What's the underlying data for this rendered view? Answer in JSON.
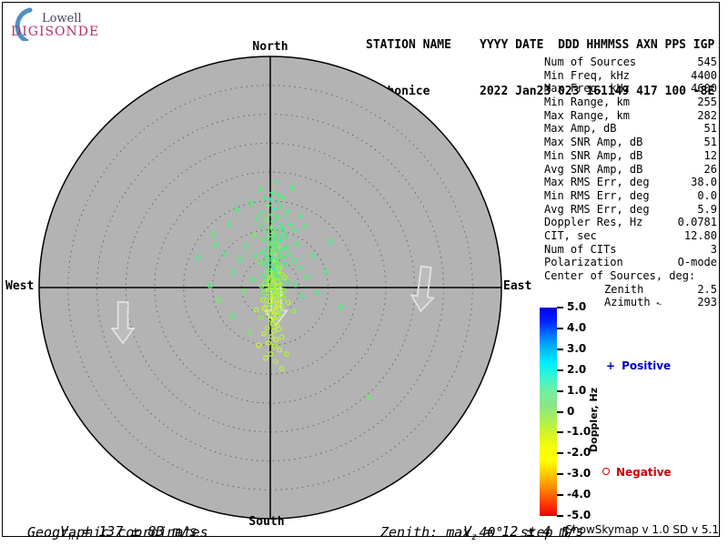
{
  "logo": {
    "line1": "Lowell",
    "line2": "DIGISONDE",
    "arc_color": "#4e8fc6"
  },
  "header": {
    "left_title": "STATION NAME",
    "left_value": "Pruhonice",
    "right_title": "YYYY DATE  DDD HHMMSS AXN PPS IGP",
    "right_value": "2022 Jan23 023 161149 417 100 -8E"
  },
  "stats": {
    "rows": [
      {
        "label": "Num of Sources",
        "value": "545"
      },
      {
        "label": "Min Freq, kHz",
        "value": "4400"
      },
      {
        "label": "Max Freq, kHz",
        "value": "4600"
      },
      {
        "label": "Min Range, km",
        "value": "255"
      },
      {
        "label": "Max Range, km",
        "value": "282"
      },
      {
        "label": "Max Amp, dB",
        "value": "51"
      },
      {
        "label": "Max SNR Amp, dB",
        "value": "51"
      },
      {
        "label": "Min SNR Amp, dB",
        "value": "12"
      },
      {
        "label": "Avg SNR Amp, dB",
        "value": "26"
      },
      {
        "label": "Max RMS Err, deg",
        "value": "38.0"
      },
      {
        "label": "Min RMS Err, deg",
        "value": "0.0"
      },
      {
        "label": "Avg RMS Err, deg",
        "value": "5.9"
      },
      {
        "label": "Doppler Res, Hz",
        "value": "0.0781"
      },
      {
        "label": "CIT, sec",
        "value": "12.80"
      },
      {
        "label": "Num of CITs",
        "value": "3"
      },
      {
        "label": "Polarization",
        "value": "O-mode"
      },
      {
        "label": "Center of Sources, deg:",
        "value": ""
      },
      {
        "label": "Zenith",
        "value": "2.5",
        "indent": true
      },
      {
        "label": "Azimuth",
        "value": "293",
        "indent": true,
        "arrow": true
      }
    ]
  },
  "footer": {
    "vh_sym": "V",
    "vh_sub": "h",
    "vh_rest": "= 137 ± 83 m/s",
    "coords": "Geographic coordinates",
    "vz_sym": "V",
    "vz_sub": "z",
    "vz_rest": "= 12 ± 4 m/s",
    "zenith_note": "Zenith: max 40°  step 5°",
    "version": "ShowSkymap v 1.0   SD v 5.1"
  },
  "chart_data": {
    "type": "scatter",
    "projection": "polar skymap (zenith angle from center, azimuth from North)",
    "station": "Pruhonice",
    "datetime": "2022 Jan23 023 161149",
    "directions": {
      "north": "North",
      "south": "South",
      "east": "East",
      "west": "West"
    },
    "zenith_max_deg": 40,
    "zenith_step_deg": 5,
    "colorbar": {
      "label": "Doppler, Hz",
      "min": -5.0,
      "max": 5.0,
      "tick_labels": [
        "5.0",
        "4.0",
        "3.0",
        "2.0",
        "1.0",
        "0",
        "-1.0",
        "-2.0",
        "-3.0",
        "-4.0",
        "-5.0"
      ],
      "gradient_top_to_bottom": [
        "#0000e6",
        "#0022ff",
        "#0077ff",
        "#00bbff",
        "#00eeff",
        "#37f6cf",
        "#6ff0a0",
        "#8ae588",
        "#a8ef55",
        "#d2f42a",
        "#f6fb08",
        "#ffff00",
        "#ffc800",
        "#ff8800",
        "#ff4400",
        "#ee0000"
      ]
    },
    "legend": {
      "positive_marker": "+",
      "positive_text": "Positive",
      "positive_color": "#0000cc",
      "negative_marker": "o",
      "negative_text": "Negative",
      "negative_color": "#cc0000"
    },
    "marker_palette": [
      "#49f07c",
      "#67f45e",
      "#8cf649",
      "#aef63a",
      "#c9f52e",
      "#3bf0a4"
    ],
    "points_format": [
      "east_offset_deg",
      "north_offset_deg",
      "marker p=+ positive doppler / o=circle negative doppler",
      "palette_color_index"
    ],
    "points": [
      [
        0.3,
        16.4,
        "p",
        0
      ],
      [
        1.2,
        14.8,
        "p",
        0
      ],
      [
        -0.3,
        14.2,
        "p",
        1
      ],
      [
        0.8,
        13.6,
        "p",
        5
      ],
      [
        1.9,
        13.9,
        "p",
        0
      ],
      [
        -1.2,
        13.0,
        "p",
        0
      ],
      [
        0.2,
        12.6,
        "p",
        1
      ],
      [
        1.1,
        12.2,
        "p",
        0
      ],
      [
        2.6,
        12.5,
        "p",
        0
      ],
      [
        -0.6,
        11.8,
        "p",
        1
      ],
      [
        0.5,
        11.4,
        "p",
        0
      ],
      [
        1.6,
        11.0,
        "p",
        5
      ],
      [
        -1.5,
        10.7,
        "o",
        0
      ],
      [
        0.1,
        10.4,
        "p",
        1
      ],
      [
        0.9,
        10.1,
        "p",
        0
      ],
      [
        2.1,
        10.3,
        "p",
        0
      ],
      [
        3.4,
        10.9,
        "p",
        0
      ],
      [
        -0.8,
        9.7,
        "p",
        0
      ],
      [
        0.4,
        9.4,
        "p",
        1
      ],
      [
        1.3,
        9.1,
        "p",
        0
      ],
      [
        2.4,
        9.3,
        "o",
        0
      ],
      [
        -0.2,
        8.8,
        "p",
        1
      ],
      [
        0.7,
        8.5,
        "p",
        0
      ],
      [
        1.8,
        8.2,
        "p",
        5
      ],
      [
        -1.1,
        8.3,
        "o",
        0
      ],
      [
        0.2,
        8.0,
        "p",
        0
      ],
      [
        1.0,
        7.8,
        "p",
        1
      ],
      [
        2.9,
        8.6,
        "p",
        0
      ],
      [
        4.1,
        9.9,
        "p",
        0
      ],
      [
        5.3,
        12.4,
        "p",
        0
      ],
      [
        -2.2,
        12.1,
        "o",
        0
      ],
      [
        -3.4,
        14.6,
        "o",
        0
      ],
      [
        2.2,
        15.6,
        "p",
        0
      ],
      [
        3.0,
        13.2,
        "p",
        0
      ],
      [
        0.0,
        15.2,
        "p",
        5
      ],
      [
        1.5,
        16.0,
        "p",
        0
      ],
      [
        -0.9,
        15.5,
        "p",
        0
      ],
      [
        6.0,
        10.5,
        "o",
        0
      ],
      [
        4.6,
        7.6,
        "o",
        0
      ],
      [
        -2.8,
        9.0,
        "o",
        1
      ],
      [
        -4.1,
        7.2,
        "o",
        0
      ],
      [
        0.0,
        7.5,
        "p",
        1
      ],
      [
        0.8,
        7.2,
        "p",
        0
      ],
      [
        1.6,
        7.0,
        "p",
        2
      ],
      [
        -0.5,
        6.8,
        "p",
        0
      ],
      [
        0.4,
        6.5,
        "o",
        1
      ],
      [
        1.2,
        6.3,
        "p",
        0
      ],
      [
        2.0,
        6.6,
        "p",
        0
      ],
      [
        2.8,
        7.0,
        "o",
        0
      ],
      [
        -1.3,
        6.1,
        "o",
        0
      ],
      [
        0.1,
        5.9,
        "p",
        1
      ],
      [
        0.9,
        5.7,
        "p",
        2
      ],
      [
        1.7,
        5.5,
        "p",
        0
      ],
      [
        -0.7,
        5.3,
        "p",
        0
      ],
      [
        0.3,
        5.1,
        "p",
        5
      ],
      [
        1.1,
        4.9,
        "o",
        1
      ],
      [
        2.3,
        5.2,
        "p",
        0
      ],
      [
        3.2,
        5.8,
        "o",
        0
      ],
      [
        -0.2,
        4.7,
        "p",
        0
      ],
      [
        0.6,
        4.5,
        "p",
        2
      ],
      [
        1.4,
        4.3,
        "p",
        1
      ],
      [
        -1.0,
        4.1,
        "o",
        0
      ],
      [
        0.2,
        3.9,
        "p",
        0
      ],
      [
        1.0,
        3.7,
        "p",
        1
      ],
      [
        1.9,
        3.5,
        "p",
        2
      ],
      [
        2.7,
        4.0,
        "o",
        0
      ],
      [
        -1.8,
        4.4,
        "o",
        1
      ],
      [
        -0.4,
        3.3,
        "p",
        0
      ],
      [
        0.7,
        3.1,
        "p",
        5
      ],
      [
        1.5,
        3.2,
        "o",
        2
      ],
      [
        4.2,
        4.8,
        "o",
        0
      ],
      [
        5.1,
        3.4,
        "o",
        0
      ],
      [
        -2.6,
        5.6,
        "o",
        0
      ],
      [
        -5.2,
        4.9,
        "o",
        0
      ],
      [
        -7.8,
        5.8,
        "o",
        0
      ],
      [
        -9.3,
        7.4,
        "o",
        0
      ],
      [
        0.1,
        2.8,
        "p",
        2
      ],
      [
        0.9,
        2.6,
        "p",
        1
      ],
      [
        1.7,
        2.5,
        "p",
        3
      ],
      [
        -0.6,
        2.4,
        "o",
        1
      ],
      [
        0.3,
        2.2,
        "p",
        2
      ],
      [
        1.1,
        2.0,
        "p",
        0
      ],
      [
        2.1,
        2.2,
        "o",
        2
      ],
      [
        -1.2,
        2.0,
        "o",
        0
      ],
      [
        0.0,
        1.8,
        "p",
        3
      ],
      [
        0.8,
        1.6,
        "p",
        2
      ],
      [
        1.6,
        1.5,
        "p",
        1
      ],
      [
        2.5,
        1.7,
        "o",
        3
      ],
      [
        -0.4,
        1.3,
        "p",
        2
      ],
      [
        0.5,
        1.1,
        "p",
        3
      ],
      [
        1.3,
        1.0,
        "o",
        2
      ],
      [
        -0.9,
        0.9,
        "o",
        1
      ],
      [
        0.1,
        0.7,
        "p",
        2
      ],
      [
        0.9,
        0.6,
        "p",
        3
      ],
      [
        1.8,
        0.7,
        "p",
        2
      ],
      [
        2.9,
        0.9,
        "o",
        0
      ],
      [
        -0.3,
        0.4,
        "p",
        3
      ],
      [
        0.6,
        0.2,
        "p",
        2
      ],
      [
        1.4,
        0.1,
        "o",
        3
      ],
      [
        -1.5,
        0.3,
        "o",
        2
      ],
      [
        0.0,
        -0.1,
        "p",
        3
      ],
      [
        0.8,
        -0.3,
        "p",
        2
      ],
      [
        1.7,
        -0.2,
        "o",
        3
      ],
      [
        2.4,
        -0.5,
        "o",
        2
      ],
      [
        -0.7,
        -0.5,
        "p",
        3
      ],
      [
        0.3,
        -0.7,
        "o",
        2
      ],
      [
        1.1,
        -0.9,
        "p",
        3
      ],
      [
        -1.1,
        -0.8,
        "o",
        1
      ],
      [
        4.4,
        0.5,
        "o",
        0
      ],
      [
        -3.1,
        1.4,
        "o",
        0
      ],
      [
        -4.6,
        -0.6,
        "o",
        1
      ],
      [
        6.3,
        1.8,
        "o",
        0
      ],
      [
        -6.4,
        2.6,
        "o",
        0
      ],
      [
        0.2,
        -1.2,
        "p",
        3
      ],
      [
        1.0,
        -1.4,
        "o",
        2
      ],
      [
        1.8,
        -1.3,
        "o",
        3
      ],
      [
        -0.5,
        -1.6,
        "o",
        2
      ],
      [
        0.4,
        -1.8,
        "p",
        4
      ],
      [
        1.2,
        -2.0,
        "o",
        3
      ],
      [
        2.2,
        -1.8,
        "o",
        2
      ],
      [
        -1.3,
        -2.1,
        "o",
        3
      ],
      [
        0.1,
        -2.4,
        "o",
        4
      ],
      [
        0.9,
        -2.6,
        "p",
        3
      ],
      [
        1.7,
        -2.8,
        "o",
        4
      ],
      [
        -0.6,
        -2.9,
        "o",
        3
      ],
      [
        0.3,
        -3.2,
        "o",
        2
      ],
      [
        1.1,
        -3.4,
        "p",
        4
      ],
      [
        2.0,
        -3.3,
        "o",
        3
      ],
      [
        -1.0,
        -3.6,
        "o",
        4
      ],
      [
        0.2,
        -3.9,
        "o",
        3
      ],
      [
        1.0,
        -4.1,
        "o",
        4
      ],
      [
        1.9,
        -4.3,
        "o",
        2
      ],
      [
        -0.4,
        -4.5,
        "o",
        3
      ],
      [
        0.5,
        -4.8,
        "o",
        4
      ],
      [
        1.3,
        -5.0,
        "o",
        3
      ],
      [
        -1.6,
        -5.2,
        "o",
        2
      ],
      [
        0.1,
        -5.5,
        "o",
        4
      ],
      [
        0.9,
        -5.8,
        "o",
        3
      ],
      [
        3.1,
        -2.6,
        "o",
        3
      ],
      [
        4.0,
        -4.0,
        "o",
        2
      ],
      [
        -2.4,
        -3.9,
        "o",
        3
      ],
      [
        5.5,
        -1.5,
        "o",
        0
      ],
      [
        0.4,
        -6.3,
        "o",
        3
      ],
      [
        1.2,
        -6.6,
        "o",
        4
      ],
      [
        -0.5,
        -7.0,
        "o",
        3
      ],
      [
        0.6,
        -7.5,
        "o",
        4
      ],
      [
        1.5,
        -7.2,
        "o",
        3
      ],
      [
        -1.1,
        -8.0,
        "o",
        4
      ],
      [
        0.2,
        -8.5,
        "o",
        3
      ],
      [
        1.0,
        -9.0,
        "o",
        4
      ],
      [
        2.0,
        -8.6,
        "o",
        3
      ],
      [
        -0.3,
        -9.6,
        "o",
        4
      ],
      [
        0.7,
        -10.2,
        "o",
        3
      ],
      [
        1.6,
        -10.8,
        "o",
        4
      ],
      [
        0.1,
        -11.5,
        "o",
        3
      ],
      [
        -0.8,
        -12.2,
        "o",
        4
      ],
      [
        0.9,
        -12.8,
        "o",
        3
      ],
      [
        17.0,
        -19.0,
        "p",
        1
      ],
      [
        -10.4,
        0.3,
        "o",
        0
      ],
      [
        -8.9,
        -2.2,
        "o",
        1
      ],
      [
        9.6,
        2.7,
        "o",
        0
      ],
      [
        8.2,
        -0.8,
        "o",
        0
      ],
      [
        -7.1,
        10.9,
        "o",
        0
      ],
      [
        -5.8,
        13.5,
        "o",
        0
      ],
      [
        10.5,
        8.0,
        "o",
        0
      ],
      [
        3.8,
        17.3,
        "p",
        0
      ],
      [
        -12.5,
        5.2,
        "o",
        0
      ],
      [
        12.2,
        -3.4,
        "o",
        0
      ],
      [
        -3.6,
        -7.8,
        "o",
        1
      ],
      [
        2.8,
        -11.5,
        "o",
        3
      ],
      [
        -2.0,
        -10.0,
        "o",
        4
      ],
      [
        7.4,
        5.6,
        "o",
        0
      ],
      [
        -6.6,
        -4.9,
        "o",
        0
      ],
      [
        0.9,
        18.2,
        "p",
        0
      ],
      [
        -1.7,
        17.0,
        "p",
        0
      ],
      [
        2.0,
        -14.0,
        "o",
        3
      ],
      [
        -9.8,
        9.1,
        "o",
        0
      ]
    ],
    "drift_arrows": [
      {
        "x_deg": -25.5,
        "y_top_deg": -2.5,
        "length_deg": 7.1,
        "tilt_deg": 0
      },
      {
        "x_deg": 26.5,
        "y_top_deg": 3.6,
        "length_deg": 7.7,
        "tilt_deg": 7
      },
      {
        "x_deg": 1.0,
        "y_top_deg": -0.1,
        "length_deg": 6.4,
        "tilt_deg": 0
      }
    ],
    "velocities": {
      "horizontal": "137 ± 83 m/s",
      "vertical": "12 ± 4 m/s"
    },
    "annotations": {
      "coordinates": "Geographic coordinates",
      "zenith_range": "Zenith: max 40°  step 5°"
    }
  }
}
